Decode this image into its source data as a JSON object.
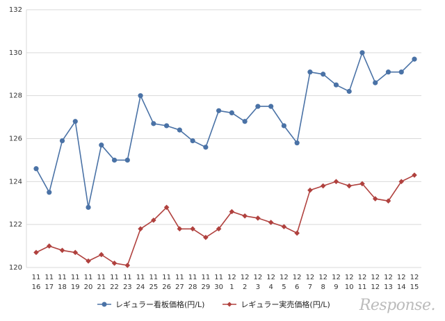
{
  "chart_data": {
    "type": "line",
    "categories": [
      [
        "11",
        "16"
      ],
      [
        "11",
        "17"
      ],
      [
        "11",
        "18"
      ],
      [
        "11",
        "19"
      ],
      [
        "11",
        "20"
      ],
      [
        "11",
        "21"
      ],
      [
        "11",
        "22"
      ],
      [
        "11",
        "23"
      ],
      [
        "11",
        "24"
      ],
      [
        "11",
        "25"
      ],
      [
        "11",
        "26"
      ],
      [
        "11",
        "27"
      ],
      [
        "11",
        "28"
      ],
      [
        "11",
        "29"
      ],
      [
        "11",
        "30"
      ],
      [
        "12",
        "1"
      ],
      [
        "12",
        "2"
      ],
      [
        "12",
        "3"
      ],
      [
        "12",
        "4"
      ],
      [
        "12",
        "5"
      ],
      [
        "12",
        "6"
      ],
      [
        "12",
        "7"
      ],
      [
        "12",
        "8"
      ],
      [
        "12",
        "9"
      ],
      [
        "12",
        "10"
      ],
      [
        "12",
        "11"
      ],
      [
        "12",
        "12"
      ],
      [
        "12",
        "13"
      ],
      [
        "12",
        "14"
      ],
      [
        "12",
        "15"
      ]
    ],
    "series": [
      {
        "name": "レギュラー看板価格(円/L)",
        "color": "#4a72a6",
        "marker": "circle",
        "values": [
          124.6,
          123.5,
          125.9,
          126.8,
          122.8,
          125.7,
          125.0,
          125.0,
          128.0,
          126.7,
          126.6,
          126.4,
          125.9,
          125.6,
          127.3,
          127.2,
          126.8,
          127.5,
          127.5,
          126.6,
          125.8,
          129.1,
          129.0,
          128.5,
          128.2,
          130.0,
          128.6,
          129.1,
          129.1,
          129.7
        ]
      },
      {
        "name": "レギュラー実売価格(円/L)",
        "color": "#b0413e",
        "marker": "diamond",
        "values": [
          120.7,
          121.0,
          120.8,
          120.7,
          120.3,
          120.6,
          120.2,
          120.1,
          121.8,
          122.2,
          122.8,
          121.8,
          121.8,
          121.4,
          121.8,
          122.6,
          122.4,
          122.3,
          122.1,
          121.9,
          121.6,
          123.6,
          123.8,
          124.0,
          123.8,
          123.9,
          123.2,
          123.1,
          124.0,
          124.3
        ]
      }
    ],
    "yticks": [
      "120",
      "122",
      "124",
      "126",
      "128",
      "130",
      "132"
    ],
    "ylim": [
      120,
      132
    ],
    "grid": true,
    "legend_position": "bottom"
  },
  "logo_text": "Response."
}
